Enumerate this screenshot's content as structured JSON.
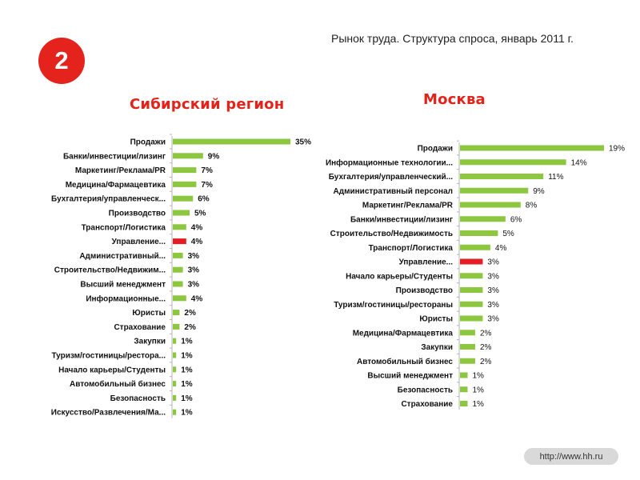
{
  "badge_number": "2",
  "page_title": "Рынок труда. Структура спроса, январь 2011 г.",
  "footer_url": "http://www.hh.ru",
  "colors": {
    "bar": "#8dc63f",
    "highlight": "#e31e24",
    "accent": "#e2231a"
  },
  "chart_data": [
    {
      "type": "bar",
      "orientation": "horizontal",
      "title": "Сибирский регион",
      "categories": [
        "Продажи",
        "Банки/инвестиции/лизинг",
        "Маркетинг/Реклама/PR",
        "Медицина/Фармацевтика",
        "Бухгалтерия/управленческ...",
        "Производство",
        "Транспорт/Логистика",
        "Управление...",
        "Административный...",
        "Строительство/Недвижим...",
        "Высший менеджмент",
        "Информационные...",
        "Юристы",
        "Страхование",
        "Закупки",
        "Туризм/гостиницы/рестора...",
        "Начало карьеры/Студенты",
        "Автомобильный бизнес",
        "Безопасность",
        "Искусство/Развлечения/Ма..."
      ],
      "values": [
        35,
        9,
        7,
        7,
        6,
        5,
        4,
        4,
        3,
        3,
        3,
        4,
        2,
        2,
        1,
        1,
        1,
        1,
        1,
        1
      ],
      "labels": [
        "35%",
        "9%",
        "7%",
        "7%",
        "6%",
        "5%",
        "4%",
        "4%",
        "3%",
        "3%",
        "3%",
        "4%",
        "2%",
        "2%",
        "1%",
        "1%",
        "1%",
        "1%",
        "1%",
        "1%"
      ],
      "highlight_index": 7,
      "grid": false
    },
    {
      "type": "bar",
      "orientation": "horizontal",
      "title": "Москва",
      "categories": [
        "Продажи",
        "Информационные технологии...",
        "Бухгалтерия/управленческий...",
        "Административный персонал",
        "Маркетинг/Реклама/PR",
        "Банки/инвестиции/лизинг",
        "Строительство/Недвижимость",
        "Транспорт/Логистика",
        "Управление...",
        "Начало карьеры/Студенты",
        "Производство",
        "Туризм/гостиницы/рестораны",
        "Юристы",
        "Медицина/Фармацевтика",
        "Закупки",
        "Автомобильный бизнес",
        "Высший менеджмент",
        "Безопасность",
        "Страхование"
      ],
      "values": [
        19,
        14,
        11,
        9,
        8,
        6,
        5,
        4,
        3,
        3,
        3,
        3,
        3,
        2,
        2,
        2,
        1,
        1,
        1
      ],
      "labels": [
        "19%",
        "14%",
        "11%",
        "9%",
        "8%",
        "6%",
        "5%",
        "4%",
        "3%",
        "3%",
        "3%",
        "3%",
        "3%",
        "2%",
        "2%",
        "2%",
        "1%",
        "1%",
        "1%"
      ],
      "highlight_index": 8,
      "grid": false
    }
  ]
}
